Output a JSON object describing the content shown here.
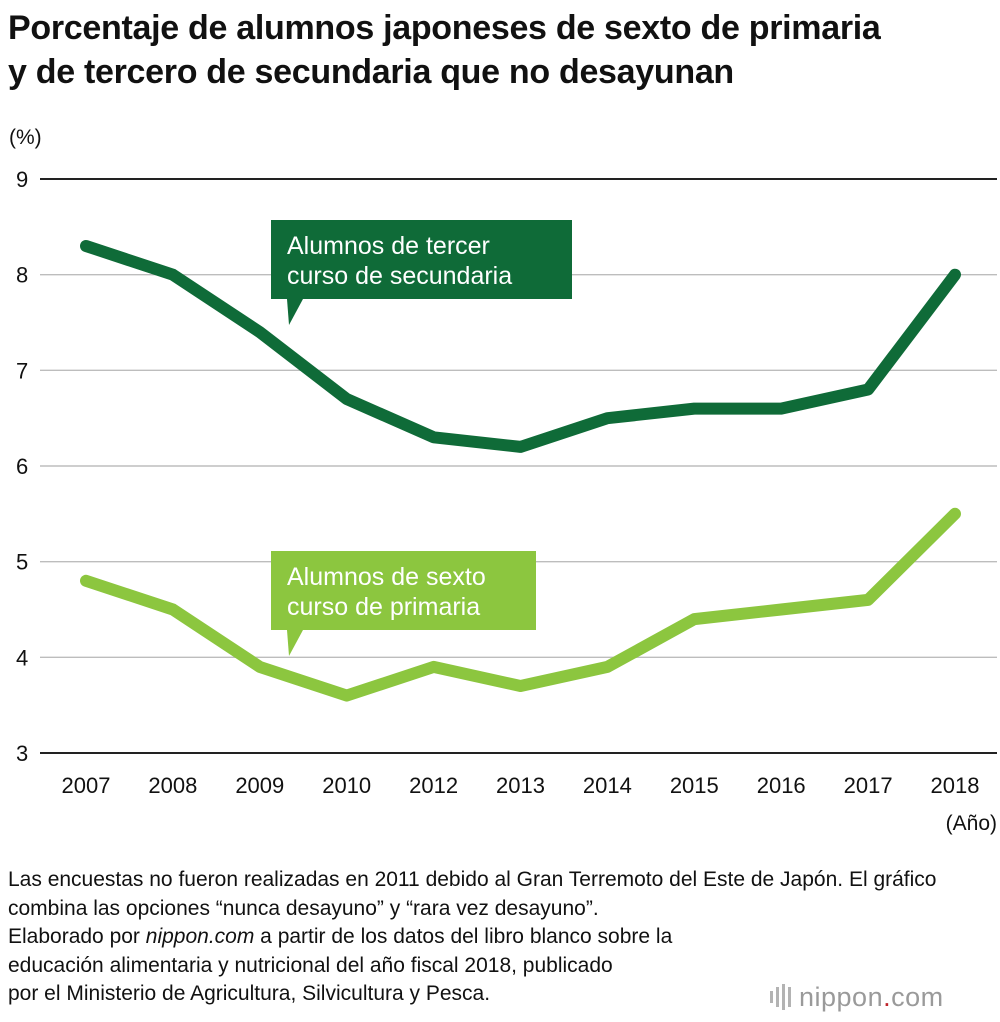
{
  "title": {
    "line1": "Porcentaje de alumnos japoneses de sexto de primaria",
    "line2": "y de tercero de secundaria que no desayunan"
  },
  "chart_data": {
    "type": "line",
    "title": "Porcentaje de alumnos japoneses de sexto de primaria y de tercero de secundaria que no desayunan",
    "ylabel": "(%)",
    "xlabel": "(Año)",
    "ylim": [
      3,
      9
    ],
    "yticks": [
      3,
      4,
      5,
      6,
      7,
      8,
      9
    ],
    "categories": [
      "2007",
      "2008",
      "2009",
      "2010",
      "2012",
      "2013",
      "2014",
      "2015",
      "2016",
      "2017",
      "2018"
    ],
    "grid": true,
    "series": [
      {
        "name": "Alumnos de tercer curso de secundaria",
        "label_lines": [
          "Alumnos de tercer",
          "curso de secundaria"
        ],
        "color": "#0f6b38",
        "values": [
          8.3,
          8.0,
          7.4,
          6.7,
          6.3,
          6.2,
          6.5,
          6.6,
          6.6,
          6.8,
          8.0
        ]
      },
      {
        "name": "Alumnos de sexto curso de primaria",
        "label_lines": [
          "Alumnos de sexto",
          "curso de primaria"
        ],
        "color": "#8cc63f",
        "values": [
          4.8,
          4.5,
          3.9,
          3.6,
          3.9,
          3.7,
          3.9,
          4.4,
          4.5,
          4.6,
          5.5
        ]
      }
    ]
  },
  "footer": {
    "line1": "Las encuestas no fueron realizadas en 2011 debido al Gran Terremoto del Este de Japón. El gráfico combina las opciones “nunca desayuno” y “rara vez desayuno”.",
    "line3_pre": "Elaborado por ",
    "line3_em": "nippon.com",
    "line3_post": " a partir de los datos del libro blanco sobre la",
    "line4": "educación alimentaria y nutricional del año fiscal 2018, publicado",
    "line5": "por el Ministerio de Agricultura, Silvicultura y Pesca."
  },
  "logo": {
    "brand": "nippon",
    "dot": ".",
    "tld": "com"
  }
}
